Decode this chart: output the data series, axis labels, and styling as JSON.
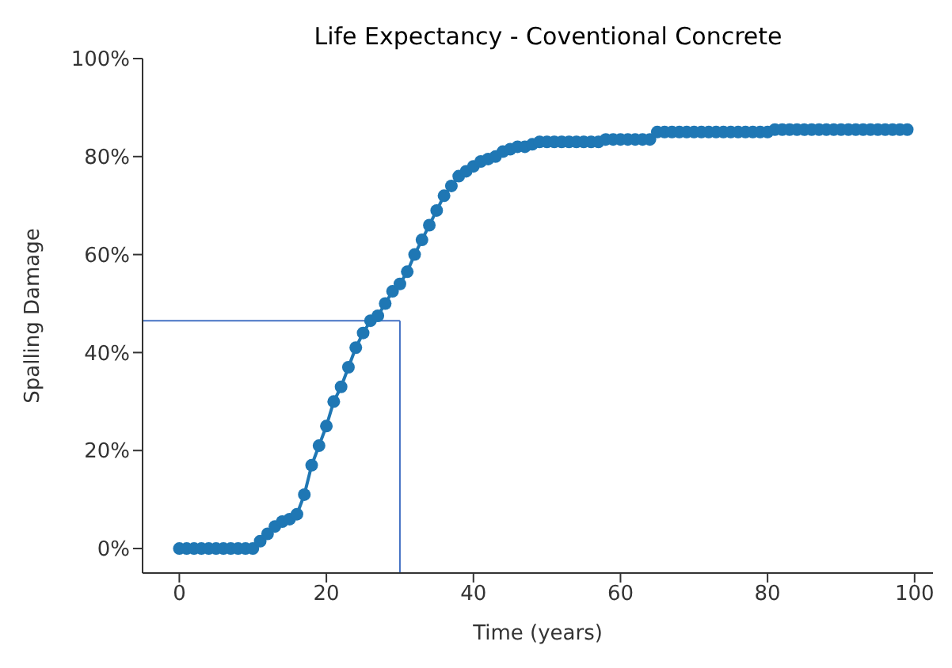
{
  "chart_data": {
    "type": "line",
    "title": "Life Expectancy - Coventional Concrete",
    "xlabel": "Time (years)",
    "ylabel": "Spalling Damage",
    "x": [
      0,
      1,
      2,
      3,
      4,
      5,
      6,
      7,
      8,
      9,
      10,
      11,
      12,
      13,
      14,
      15,
      16,
      17,
      18,
      19,
      20,
      21,
      22,
      23,
      24,
      25,
      26,
      27,
      28,
      29,
      30,
      31,
      32,
      33,
      34,
      35,
      36,
      37,
      38,
      39,
      40,
      41,
      42,
      43,
      44,
      45,
      46,
      47,
      48,
      49,
      50,
      51,
      52,
      53,
      54,
      55,
      56,
      57,
      58,
      59,
      60,
      61,
      62,
      63,
      64,
      65,
      66,
      67,
      68,
      69,
      70,
      71,
      72,
      73,
      74,
      75,
      76,
      77,
      78,
      79,
      80,
      81,
      82,
      83,
      84,
      85,
      86,
      87,
      88,
      89,
      90,
      91,
      92,
      93,
      94,
      95,
      96,
      97,
      98,
      99
    ],
    "series": [
      {
        "color": "#1f77b4",
        "values": [
          0,
          0,
          0,
          0,
          0,
          0,
          0,
          0,
          0,
          0,
          0,
          1.5,
          3,
          4.5,
          5.5,
          6,
          7,
          11,
          17,
          21,
          25,
          30,
          33,
          37,
          41,
          44,
          46.5,
          47.5,
          50,
          52.5,
          54,
          56.5,
          60,
          63,
          66,
          69,
          72,
          74,
          76,
          77,
          78,
          79,
          79.5,
          80,
          81,
          81.5,
          82,
          82,
          82.5,
          83,
          83,
          83,
          83,
          83,
          83,
          83,
          83,
          83,
          83.5,
          83.5,
          83.5,
          83.5,
          83.5,
          83.5,
          83.5,
          85,
          85,
          85,
          85,
          85,
          85,
          85,
          85,
          85,
          85,
          85,
          85,
          85,
          85,
          85,
          85,
          85.5,
          85.5,
          85.5,
          85.5,
          85.5,
          85.5,
          85.5,
          85.5,
          85.5,
          85.5,
          85.5,
          85.5,
          85.5,
          85.5,
          85.5,
          85.5,
          85.5,
          85.5,
          85.5
        ]
      }
    ],
    "xlim": [
      -5,
      102.5
    ],
    "xticks": [
      0,
      20,
      40,
      60,
      80,
      100
    ],
    "ylim": [
      -5,
      100
    ],
    "yticks": [
      {
        "value": 0,
        "label": "0%"
      },
      {
        "value": 20,
        "label": "20%"
      },
      {
        "value": 40,
        "label": "40%"
      },
      {
        "value": 60,
        "label": "60%"
      },
      {
        "value": 80,
        "label": "80%"
      },
      {
        "value": 100,
        "label": "100%"
      }
    ],
    "ref_lines": [
      {
        "axis": "y",
        "value": 46.5,
        "color": "#4472c4"
      },
      {
        "axis": "x",
        "value": 30,
        "color": "#4472c4"
      }
    ],
    "marker": "circle",
    "grid": false
  }
}
